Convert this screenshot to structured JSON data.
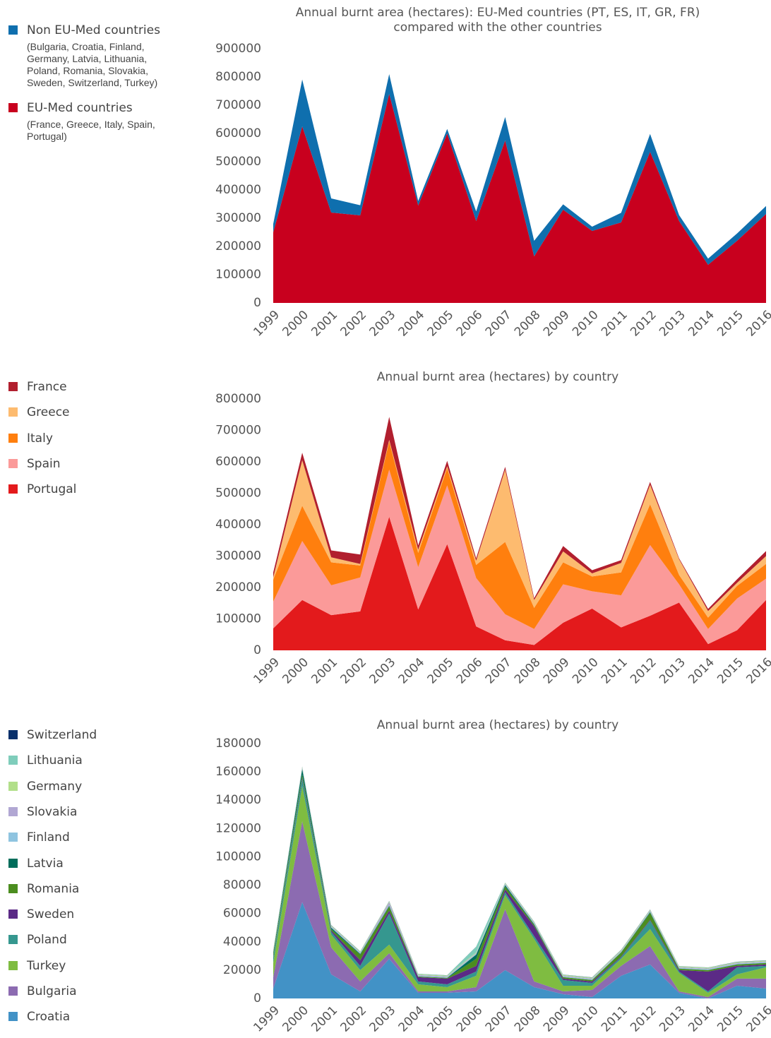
{
  "chart_data": [
    {
      "type": "stacked_area",
      "title": "Annual burnt area (hectares): EU-Med countries (PT, ES, IT, GR, FR) compared with the other countries",
      "categories": [
        "1999",
        "2000",
        "2001",
        "2002",
        "2003",
        "2004",
        "2005",
        "2006",
        "2007",
        "2008",
        "2009",
        "2010",
        "2011",
        "2012",
        "2013",
        "2014",
        "2015",
        "2016"
      ],
      "ylim": [
        0,
        900000
      ],
      "yticks": [
        0,
        100000,
        200000,
        300000,
        400000,
        500000,
        600000,
        700000,
        800000,
        900000
      ],
      "series": [
        {
          "name": "Non EU-Med countries",
          "description": "(Bulgaria, Croatia, Finland, Germany, Latvia, Lithuania, Poland, Romania, Slovakia, Sweden, Switzerland, Turkey)",
          "color": "#0f6fae",
          "values": [
            30000,
            166000,
            50000,
            36000,
            70000,
            16000,
            16000,
            34000,
            83000,
            55000,
            19000,
            15000,
            34000,
            63000,
            21000,
            22000,
            26000,
            28000
          ]
        },
        {
          "name": "EU-Med countries",
          "description": "(France, Greece, Italy, Spain, Portugal)",
          "color": "#c8001e",
          "values": [
            250000,
            625000,
            320000,
            310000,
            740000,
            345000,
            600000,
            290000,
            575000,
            165000,
            330000,
            255000,
            285000,
            535000,
            290000,
            135000,
            220000,
            315000
          ]
        }
      ]
    },
    {
      "type": "stacked_area",
      "title": "Annual burnt area (hectares) by country",
      "categories": [
        "1999",
        "2000",
        "2001",
        "2002",
        "2003",
        "2004",
        "2005",
        "2006",
        "2007",
        "2008",
        "2009",
        "2010",
        "2011",
        "2012",
        "2013",
        "2014",
        "2015",
        "2016"
      ],
      "ylim": [
        0,
        800000
      ],
      "yticks": [
        0,
        100000,
        200000,
        300000,
        400000,
        500000,
        600000,
        700000,
        800000
      ],
      "series": [
        {
          "name": "France",
          "color": "#b11f2e",
          "values": [
            16000,
            24000,
            22000,
            30000,
            73000,
            14000,
            17000,
            8000,
            9000,
            6000,
            17000,
            10000,
            9000,
            9000,
            3000,
            7000,
            11000,
            16000
          ]
        },
        {
          "name": "Greece",
          "color": "#fdbb6f",
          "values": [
            7000,
            145000,
            16000,
            5000,
            5000,
            10000,
            6000,
            13000,
            230000,
            25000,
            35000,
            10000,
            30000,
            62000,
            50000,
            21000,
            10000,
            25000
          ]
        },
        {
          "name": "Italy",
          "color": "#ff7f0e",
          "values": [
            70000,
            112000,
            73000,
            38000,
            90000,
            45000,
            55000,
            42000,
            230000,
            67000,
            70000,
            47000,
            73000,
            130000,
            30000,
            36000,
            40000,
            47000
          ]
        },
        {
          "name": "Spain",
          "color": "#fb9a99",
          "values": [
            85000,
            188000,
            95000,
            108000,
            150000,
            135000,
            187000,
            154000,
            83000,
            51000,
            122000,
            55000,
            102000,
            225000,
            58000,
            48000,
            101000,
            68000
          ]
        },
        {
          "name": "Portugal",
          "color": "#e31a1c",
          "values": [
            70000,
            160000,
            112000,
            124000,
            425000,
            130000,
            338000,
            76000,
            32000,
            17000,
            88000,
            133000,
            73000,
            110000,
            152000,
            20000,
            64000,
            160000
          ]
        }
      ]
    },
    {
      "type": "stacked_area",
      "title": "Annual burnt area (hectares) by country",
      "categories": [
        "1999",
        "2000",
        "2001",
        "2002",
        "2003",
        "2004",
        "2005",
        "2006",
        "2007",
        "2008",
        "2009",
        "2010",
        "2011",
        "2012",
        "2013",
        "2014",
        "2015",
        "2016"
      ],
      "ylim": [
        0,
        180000
      ],
      "yticks": [
        0,
        20000,
        40000,
        60000,
        80000,
        100000,
        120000,
        140000,
        160000,
        180000
      ],
      "series": [
        {
          "name": "Switzerland",
          "color": "#08306b",
          "values": [
            100,
            100,
            100,
            100,
            100,
            100,
            100,
            100,
            100,
            100,
            100,
            100,
            100,
            100,
            100,
            100,
            100,
            100
          ]
        },
        {
          "name": "Lithuania",
          "color": "#7fcdbb",
          "values": [
            200,
            200,
            200,
            200,
            200,
            200,
            200,
            4000,
            200,
            200,
            200,
            200,
            200,
            200,
            200,
            200,
            200,
            200
          ]
        },
        {
          "name": "Germany",
          "color": "#b2df8a",
          "values": [
            500,
            500,
            500,
            500,
            500,
            500,
            500,
            500,
            500,
            500,
            500,
            500,
            500,
            500,
            500,
            500,
            500,
            500
          ]
        },
        {
          "name": "Slovakia",
          "color": "#b1a7d3",
          "values": [
            500,
            500,
            500,
            500,
            2000,
            500,
            500,
            500,
            500,
            500,
            500,
            500,
            500,
            500,
            500,
            500,
            500,
            500
          ]
        },
        {
          "name": "Finland",
          "color": "#8fc4e0",
          "values": [
            500,
            500,
            500,
            500,
            500,
            500,
            500,
            500,
            500,
            500,
            500,
            500,
            500,
            500,
            500,
            500,
            500,
            500
          ]
        },
        {
          "name": "Latvia",
          "color": "#006d5b",
          "values": [
            1000,
            4000,
            1000,
            500,
            500,
            100,
            100,
            3000,
            1000,
            500,
            100,
            100,
            100,
            500,
            100,
            100,
            100,
            100
          ]
        },
        {
          "name": "Romania",
          "color": "#4b8d1f",
          "values": [
            2000,
            2000,
            1000,
            4000,
            3000,
            500,
            500,
            5000,
            2000,
            1000,
            1000,
            1000,
            3000,
            5000,
            1000,
            1000,
            1000,
            1000
          ]
        },
        {
          "name": "Sweden",
          "color": "#5b2a86",
          "values": [
            500,
            1000,
            1000,
            4000,
            2000,
            3000,
            4000,
            4000,
            2000,
            7000,
            1000,
            1000,
            500,
            500,
            1000,
            14000,
            1000,
            1000
          ]
        },
        {
          "name": "Poland",
          "color": "#35978f",
          "values": [
            4000,
            5000,
            2000,
            3000,
            22000,
            2000,
            2000,
            3000,
            2000,
            2000,
            4000,
            2000,
            1000,
            6000,
            1000,
            1000,
            5000,
            1000
          ]
        },
        {
          "name": "Turkey",
          "color": "#7fbc41",
          "values": [
            10000,
            25000,
            9000,
            8000,
            6000,
            5000,
            3000,
            8000,
            10000,
            30000,
            4000,
            3000,
            5000,
            12000,
            13000,
            3000,
            3000,
            8000
          ]
        },
        {
          "name": "Bulgaria",
          "color": "#8c6bb1",
          "values": [
            8000,
            57000,
            19000,
            7000,
            4000,
            1000,
            1000,
            3000,
            43000,
            4000,
            2000,
            5000,
            7000,
            13000,
            1000,
            1000,
            5000,
            7000
          ]
        },
        {
          "name": "Croatia",
          "color": "#4292c6",
          "values": [
            7000,
            68000,
            17000,
            5000,
            28000,
            4000,
            4000,
            5000,
            20000,
            8000,
            3000,
            1000,
            16000,
            24000,
            4000,
            0,
            9000,
            7000
          ]
        }
      ]
    }
  ]
}
